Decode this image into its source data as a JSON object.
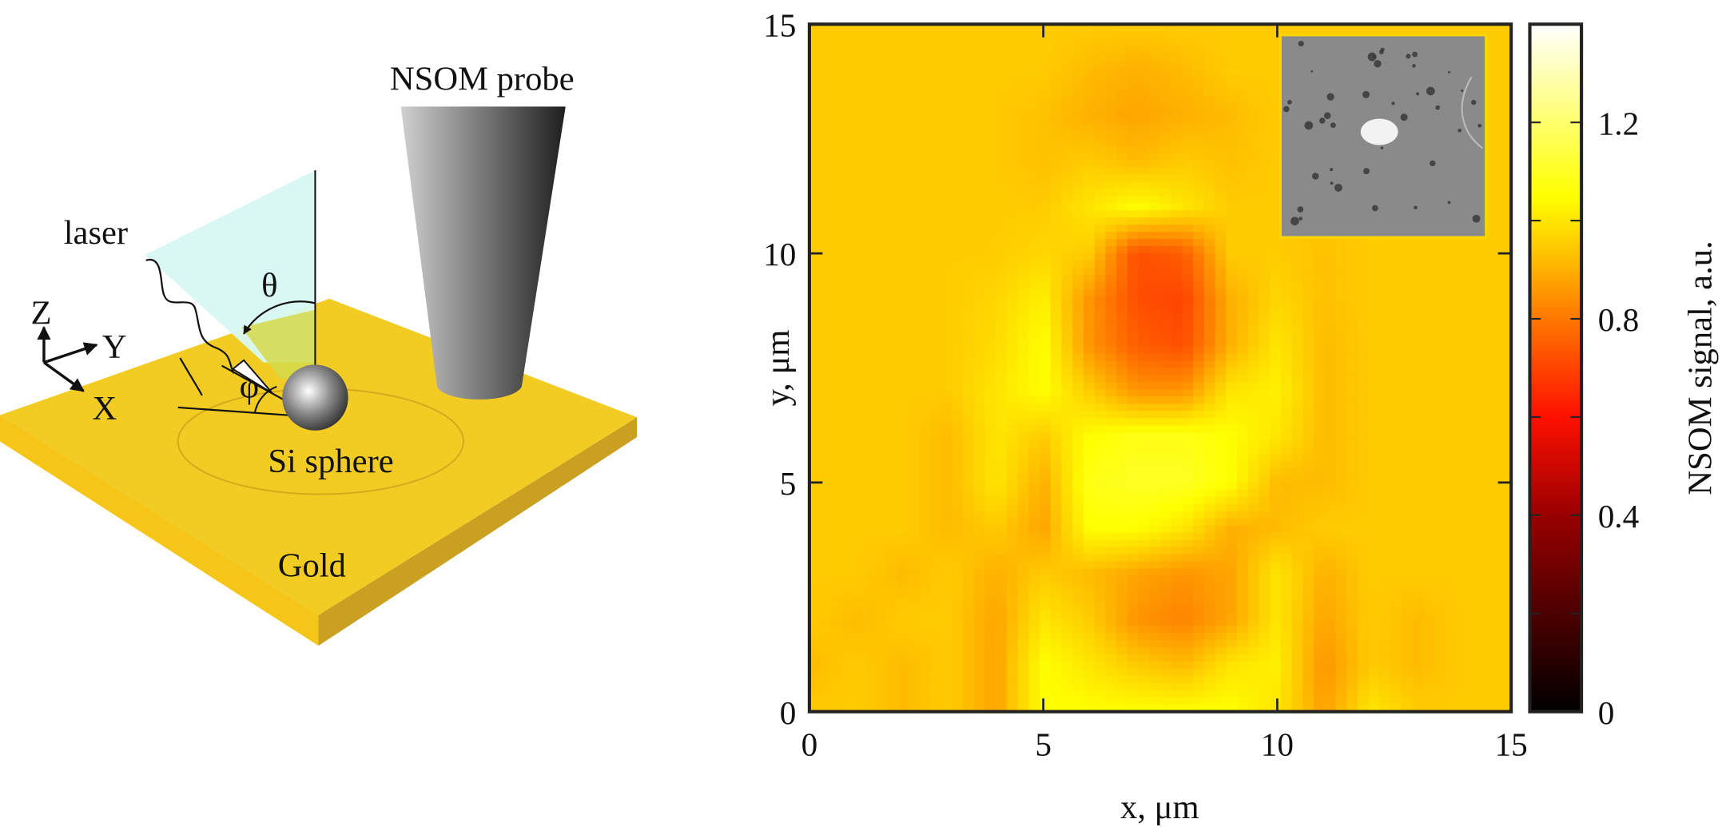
{
  "diagram": {
    "nsom_probe": "NSOM probe",
    "laser": "laser",
    "theta": "θ",
    "phi": "φ",
    "si_sphere": "Si sphere",
    "gold": "Gold",
    "axis_z": "Z",
    "axis_y": "Y",
    "axis_x": "X",
    "colors": {
      "gold_top": "#f2cc22",
      "gold_side_left": "#f5c518",
      "gold_side_right": "#c9a020",
      "laser_plane": "#d8f8f2"
    }
  },
  "chart_data": {
    "type": "heatmap",
    "xlabel": "x, μm",
    "ylabel": "y, μm",
    "xlim": [
      0,
      15
    ],
    "ylim": [
      0,
      15
    ],
    "xticks": [
      0,
      5,
      10,
      15
    ],
    "yticks": [
      0,
      5,
      10,
      15
    ],
    "colormap": "hot",
    "colorbar": {
      "label": "NSOM signal, a.u.",
      "range": [
        0,
        1.4
      ],
      "ticks": [
        0,
        0.4,
        0.8,
        1.2
      ],
      "minor_ticks": [
        0.2,
        0.6,
        1.0
      ]
    },
    "inset": "grayscale microscope image of the Si sphere on gold (top-right)",
    "x": [
      0,
      1,
      2,
      3,
      4,
      5,
      6,
      7,
      8,
      9,
      10,
      11,
      12,
      13,
      14,
      15
    ],
    "y": [
      15,
      14,
      13,
      12,
      11,
      10,
      9,
      8,
      7,
      6,
      5,
      4,
      3,
      2,
      1,
      0
    ],
    "z": [
      [
        0.95,
        0.95,
        0.95,
        0.95,
        0.95,
        0.95,
        0.95,
        0.95,
        0.95,
        0.95,
        0.95,
        0.95,
        0.95,
        0.95,
        0.95,
        0.95
      ],
      [
        0.95,
        0.95,
        0.95,
        0.95,
        0.95,
        0.95,
        0.92,
        0.9,
        0.92,
        0.95,
        0.95,
        0.95,
        0.95,
        0.95,
        0.95,
        0.95
      ],
      [
        0.95,
        0.95,
        0.95,
        0.95,
        0.95,
        0.93,
        0.9,
        0.88,
        0.9,
        0.92,
        0.95,
        0.95,
        0.95,
        0.95,
        0.95,
        0.95
      ],
      [
        0.95,
        0.95,
        0.95,
        0.95,
        0.95,
        0.93,
        0.95,
        0.92,
        0.95,
        0.93,
        0.95,
        0.95,
        0.95,
        0.95,
        0.95,
        0.95
      ],
      [
        0.95,
        0.95,
        0.95,
        0.95,
        0.95,
        0.95,
        1.0,
        1.05,
        1.0,
        0.95,
        0.95,
        0.95,
        0.95,
        0.95,
        0.95,
        0.95
      ],
      [
        0.95,
        0.95,
        0.95,
        0.95,
        0.95,
        0.97,
        0.95,
        0.72,
        0.75,
        0.95,
        0.95,
        0.93,
        0.95,
        0.95,
        0.95,
        0.95
      ],
      [
        0.95,
        0.95,
        0.95,
        0.95,
        0.97,
        1.02,
        0.85,
        0.72,
        0.7,
        0.9,
        0.97,
        0.93,
        0.95,
        0.95,
        0.95,
        0.95
      ],
      [
        0.95,
        0.95,
        0.95,
        0.95,
        0.98,
        1.05,
        0.85,
        0.75,
        0.72,
        0.9,
        1.0,
        0.92,
        0.95,
        0.95,
        0.95,
        0.95
      ],
      [
        0.95,
        0.95,
        0.95,
        0.95,
        1.0,
        1.05,
        0.95,
        0.85,
        0.85,
        1.0,
        1.02,
        0.92,
        0.95,
        0.95,
        0.95,
        0.95
      ],
      [
        0.95,
        0.95,
        0.95,
        0.92,
        1.0,
        0.95,
        1.05,
        1.08,
        1.08,
        1.05,
        1.0,
        0.92,
        0.95,
        0.95,
        0.95,
        0.95
      ],
      [
        0.95,
        0.95,
        0.95,
        0.92,
        1.0,
        0.9,
        1.08,
        1.1,
        1.1,
        1.05,
        0.92,
        0.92,
        0.95,
        0.95,
        0.95,
        0.95
      ],
      [
        0.95,
        0.95,
        0.95,
        0.92,
        0.95,
        0.88,
        1.05,
        1.05,
        1.0,
        0.9,
        0.92,
        0.95,
        0.95,
        0.95,
        0.95,
        0.95
      ],
      [
        0.95,
        0.95,
        0.92,
        0.95,
        0.9,
        0.95,
        0.92,
        0.88,
        0.85,
        0.88,
        1.0,
        0.9,
        0.95,
        0.95,
        0.95,
        0.95
      ],
      [
        0.95,
        0.92,
        0.95,
        0.95,
        0.88,
        1.0,
        0.95,
        0.85,
        0.82,
        0.88,
        1.0,
        0.88,
        0.95,
        0.92,
        0.95,
        0.95
      ],
      [
        0.92,
        0.95,
        0.92,
        0.95,
        0.88,
        1.05,
        1.0,
        0.95,
        0.92,
        1.0,
        1.02,
        0.85,
        0.95,
        0.92,
        0.95,
        0.95
      ],
      [
        0.95,
        0.95,
        0.92,
        0.95,
        0.88,
        1.05,
        1.05,
        1.05,
        1.05,
        1.05,
        1.0,
        0.87,
        1.0,
        0.95,
        0.95,
        0.95
      ]
    ]
  }
}
